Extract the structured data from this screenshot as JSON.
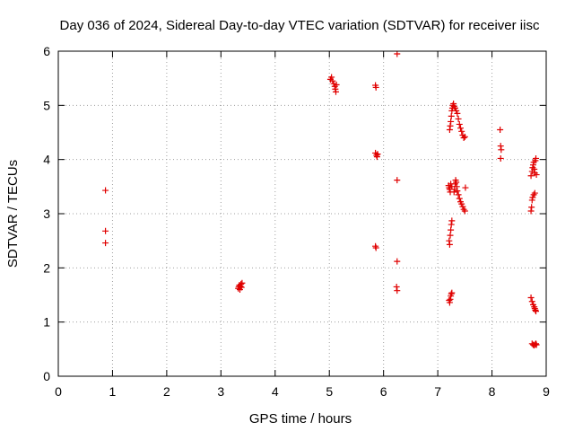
{
  "chart_data": {
    "type": "scatter",
    "title": "Day 036 of 2024, Sidereal Day-to-day VTEC variation (SDTVAR) for receiver iisc",
    "xlabel": "GPS time / hours",
    "ylabel": "SDTVAR / TECUs",
    "xlim": [
      0,
      9
    ],
    "ylim": [
      0,
      6
    ],
    "xticks": [
      "0",
      "1",
      "2",
      "3",
      "4",
      "5",
      "6",
      "7",
      "8",
      "9"
    ],
    "yticks": [
      "0",
      "1",
      "2",
      "3",
      "4",
      "5",
      "6"
    ],
    "grid": true,
    "marker": "+",
    "series": [
      {
        "name": "SDTVAR",
        "color": "#e00000",
        "points": [
          [
            0.87,
            3.43
          ],
          [
            0.87,
            2.68
          ],
          [
            0.87,
            2.46
          ],
          [
            3.32,
            1.62
          ],
          [
            3.33,
            1.65
          ],
          [
            3.34,
            1.68
          ],
          [
            3.35,
            1.6
          ],
          [
            3.36,
            1.66
          ],
          [
            3.37,
            1.7
          ],
          [
            3.38,
            1.64
          ],
          [
            3.39,
            1.72
          ],
          [
            5.02,
            5.48
          ],
          [
            5.04,
            5.52
          ],
          [
            5.06,
            5.45
          ],
          [
            5.08,
            5.4
          ],
          [
            5.1,
            5.35
          ],
          [
            5.11,
            5.3
          ],
          [
            5.12,
            5.25
          ],
          [
            5.13,
            5.38
          ],
          [
            5.85,
            5.37
          ],
          [
            5.86,
            5.33
          ],
          [
            5.85,
            4.12
          ],
          [
            5.87,
            4.08
          ],
          [
            5.88,
            4.05
          ],
          [
            5.89,
            4.1
          ],
          [
            5.85,
            2.4
          ],
          [
            5.86,
            2.37
          ],
          [
            6.25,
            5.95
          ],
          [
            6.25,
            3.62
          ],
          [
            6.25,
            2.12
          ],
          [
            6.24,
            1.65
          ],
          [
            6.25,
            1.58
          ],
          [
            7.2,
            3.52
          ],
          [
            7.21,
            3.48
          ],
          [
            7.22,
            3.45
          ],
          [
            7.23,
            3.4
          ],
          [
            7.24,
            3.55
          ],
          [
            7.26,
            3.5
          ],
          [
            7.21,
            2.5
          ],
          [
            7.22,
            2.43
          ],
          [
            7.23,
            2.6
          ],
          [
            7.24,
            2.7
          ],
          [
            7.25,
            2.8
          ],
          [
            7.26,
            2.87
          ],
          [
            7.21,
            1.4
          ],
          [
            7.22,
            1.36
          ],
          [
            7.23,
            1.42
          ],
          [
            7.24,
            1.48
          ],
          [
            7.25,
            1.52
          ],
          [
            7.26,
            1.54
          ],
          [
            7.22,
            4.55
          ],
          [
            7.23,
            4.62
          ],
          [
            7.24,
            4.7
          ],
          [
            7.25,
            4.8
          ],
          [
            7.26,
            4.9
          ],
          [
            7.27,
            4.95
          ],
          [
            7.28,
            5.0
          ],
          [
            7.29,
            5.03
          ],
          [
            7.3,
            4.98
          ],
          [
            7.32,
            4.95
          ],
          [
            7.34,
            4.9
          ],
          [
            7.36,
            4.85
          ],
          [
            7.38,
            4.75
          ],
          [
            7.4,
            4.65
          ],
          [
            7.42,
            4.58
          ],
          [
            7.44,
            4.52
          ],
          [
            7.46,
            4.45
          ],
          [
            7.48,
            4.4
          ],
          [
            7.5,
            4.42
          ],
          [
            7.3,
            3.4
          ],
          [
            7.31,
            3.45
          ],
          [
            7.32,
            3.55
          ],
          [
            7.33,
            3.62
          ],
          [
            7.34,
            3.58
          ],
          [
            7.35,
            3.5
          ],
          [
            7.36,
            3.42
          ],
          [
            7.38,
            3.35
          ],
          [
            7.4,
            3.28
          ],
          [
            7.42,
            3.22
          ],
          [
            7.44,
            3.18
          ],
          [
            7.46,
            3.13
          ],
          [
            7.48,
            3.08
          ],
          [
            7.5,
            3.05
          ],
          [
            7.51,
            3.48
          ],
          [
            8.15,
            4.55
          ],
          [
            8.16,
            4.25
          ],
          [
            8.17,
            4.18
          ],
          [
            8.16,
            4.02
          ],
          [
            8.72,
            3.05
          ],
          [
            8.73,
            3.12
          ],
          [
            8.74,
            3.25
          ],
          [
            8.75,
            3.3
          ],
          [
            8.77,
            3.35
          ],
          [
            8.79,
            3.38
          ],
          [
            8.72,
            3.7
          ],
          [
            8.74,
            3.78
          ],
          [
            8.75,
            3.85
          ],
          [
            8.76,
            3.9
          ],
          [
            8.77,
            3.95
          ],
          [
            8.78,
            3.82
          ],
          [
            8.79,
            3.75
          ],
          [
            8.8,
            3.98
          ],
          [
            8.81,
            4.02
          ],
          [
            8.82,
            3.72
          ],
          [
            8.72,
            1.45
          ],
          [
            8.74,
            1.38
          ],
          [
            8.76,
            1.32
          ],
          [
            8.78,
            1.28
          ],
          [
            8.79,
            1.25
          ],
          [
            8.8,
            1.22
          ],
          [
            8.81,
            1.2
          ],
          [
            8.74,
            0.6
          ],
          [
            8.76,
            0.58
          ],
          [
            8.78,
            0.57
          ],
          [
            8.8,
            0.59
          ],
          [
            8.81,
            0.6
          ],
          [
            8.82,
            0.58
          ]
        ]
      }
    ]
  }
}
